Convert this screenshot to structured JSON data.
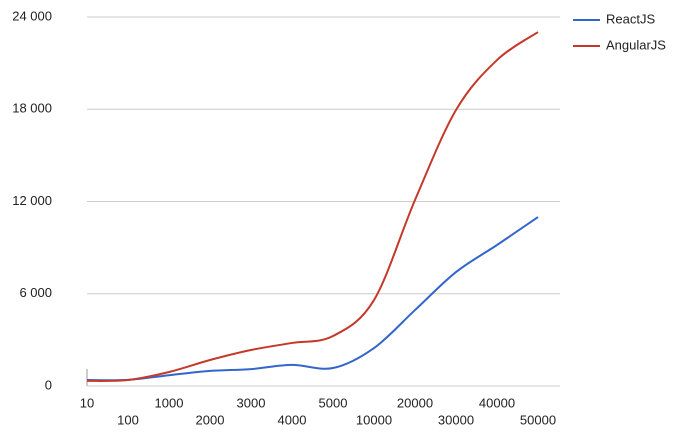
{
  "chart_data": {
    "type": "line",
    "categories": [
      "10",
      "100",
      "1000",
      "2000",
      "3000",
      "4000",
      "5000",
      "10000",
      "20000",
      "30000",
      "40000",
      "50000"
    ],
    "series": [
      {
        "name": "ReactJS",
        "color": "#3366cc",
        "values": [
          390,
          400,
          700,
          980,
          1100,
          1370,
          1170,
          2470,
          4940,
          7410,
          9170,
          10990
        ]
      },
      {
        "name": "AngularJS",
        "color": "#c5392a",
        "values": [
          330,
          390,
          910,
          1690,
          2340,
          2800,
          3250,
          5590,
          12100,
          17950,
          21200,
          23020
        ]
      }
    ],
    "ylim": [
      0,
      24000
    ],
    "yticks": [
      0,
      {
        "value": 6000,
        "label": "6 000"
      },
      {
        "value": 12000,
        "label": "12 000"
      },
      {
        "value": 18000,
        "label": "18 000"
      },
      {
        "value": 24000,
        "label": "24 000"
      }
    ],
    "grid": true,
    "legend": "right"
  }
}
